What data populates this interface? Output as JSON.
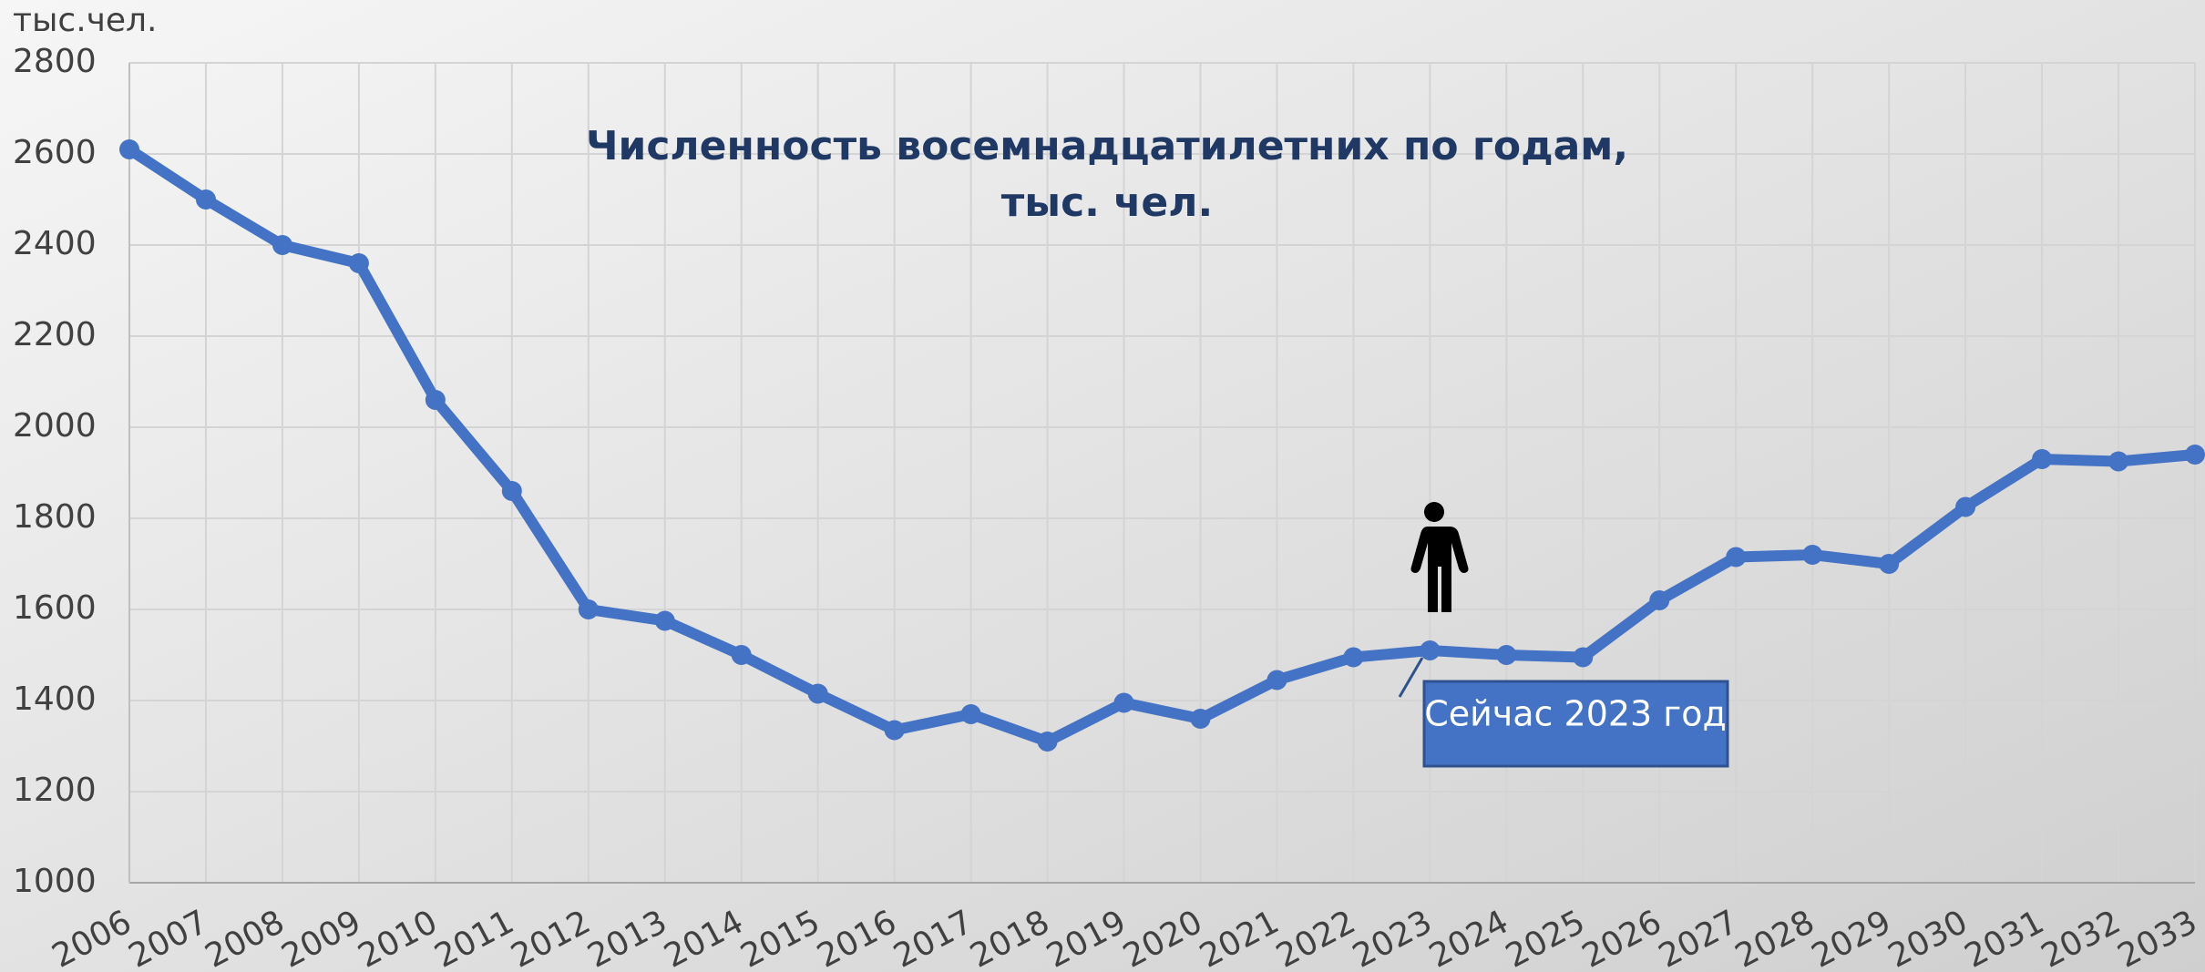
{
  "chart_data": {
    "type": "line",
    "title": "Численность восемнадцатилетних по годам, тыс. чел.",
    "y_label": "тыс.чел.",
    "annotation": "Сейчас 2023 год",
    "categories": [
      "2006",
      "2007",
      "2008",
      "2009",
      "2010",
      "2011",
      "2012",
      "2013",
      "2014",
      "2015",
      "2016",
      "2017",
      "2018",
      "2019",
      "2020",
      "2021",
      "2022",
      "2023",
      "2024",
      "2025",
      "2026",
      "2027",
      "2028",
      "2029",
      "2030",
      "2031",
      "2032",
      "2033"
    ],
    "series": [
      {
        "name": "Численность",
        "color": "#4472c4",
        "values": [
          2610,
          2500,
          2400,
          2360,
          2060,
          1860,
          1600,
          1575,
          1500,
          1415,
          1335,
          1370,
          1310,
          1395,
          1360,
          1445,
          1495,
          1510,
          1500,
          1495,
          1620,
          1715,
          1720,
          1700,
          1825,
          1930,
          1925,
          1940
        ]
      }
    ],
    "ylim": [
      1000,
      2800
    ],
    "yticks": [
      1000,
      1200,
      1400,
      1600,
      1800,
      2000,
      2200,
      2400,
      2600,
      2800
    ],
    "grid": true
  }
}
